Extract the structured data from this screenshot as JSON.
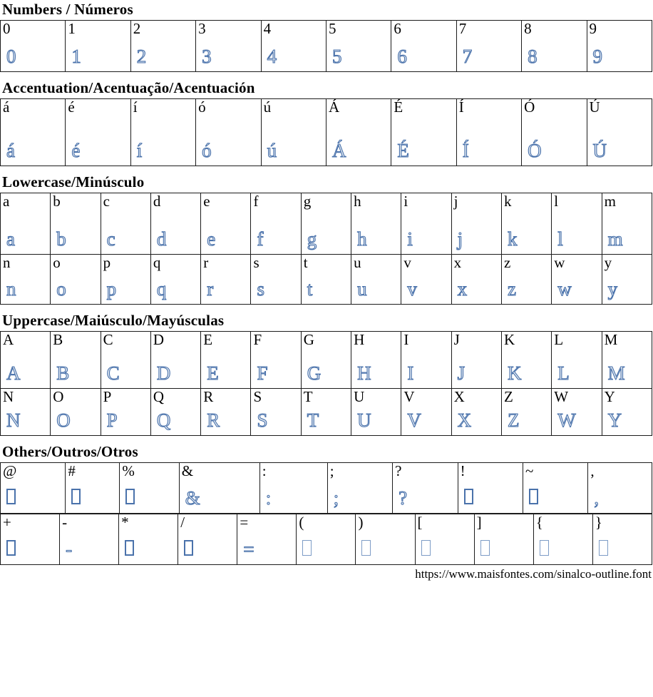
{
  "page": {
    "url": "https://www.maisfontes.com/sinalco-outline.font",
    "glyph_color": "#4a72ab",
    "glyph_color_light": "#7d9cc6",
    "border_color": "#1c1c1c"
  },
  "glyphs": {
    "missing": [
      "@",
      "#",
      "%",
      "!",
      "~",
      "+",
      "*",
      "/",
      "(",
      ")",
      "[",
      "]",
      "{",
      "}"
    ],
    "light": [
      "(",
      ")",
      "[",
      "]",
      "{",
      "}"
    ]
  },
  "sections": [
    {
      "id": "numbers",
      "title": "Numbers / Números",
      "tables": [
        {
          "rows": [
            [
              "0",
              "1",
              "2",
              "3",
              "4",
              "5",
              "6",
              "7",
              "8",
              "9"
            ]
          ]
        }
      ]
    },
    {
      "id": "accentuation",
      "title": "Accentuation/Acentuação/Acentuación",
      "tables": [
        {
          "rows": [
            [
              "á",
              "é",
              "í",
              "ó",
              "ú",
              "Á",
              "É",
              "Í",
              "Ó",
              "Ú"
            ]
          ]
        }
      ]
    },
    {
      "id": "lowercase",
      "title": "Lowercase/Minúsculo",
      "tables": [
        {
          "rows": [
            [
              "a",
              "b",
              "c",
              "d",
              "e",
              "f",
              "g",
              "h",
              "i",
              "j",
              "k",
              "l",
              "m"
            ],
            [
              "n",
              "o",
              "p",
              "q",
              "r",
              "s",
              "t",
              "u",
              "v",
              "x",
              "z",
              "w",
              "y"
            ]
          ]
        }
      ]
    },
    {
      "id": "uppercase",
      "title": "Uppercase/Maiúsculo/Mayúsculas",
      "tables": [
        {
          "rows": [
            [
              "A",
              "B",
              "C",
              "D",
              "E",
              "F",
              "G",
              "H",
              "I",
              "J",
              "K",
              "L",
              "M"
            ],
            [
              "N",
              "O",
              "P",
              "Q",
              "R",
              "S",
              "T",
              "U",
              "V",
              "X",
              "Z",
              "W",
              "Y"
            ]
          ]
        }
      ]
    },
    {
      "id": "others",
      "title": "Others/Outros/Otros",
      "tables": [
        {
          "col_widths": [
            "10%",
            "8.3%",
            "9.1%",
            "12.4%",
            "10.4%",
            "10%",
            "10%",
            "10%",
            "10%",
            "9.8%"
          ],
          "rows": [
            [
              "@",
              "#",
              "%",
              "&",
              ":",
              ";",
              "?",
              "!",
              "~",
              ","
            ]
          ]
        },
        {
          "rows": [
            [
              "+",
              "-",
              "*",
              "/",
              "=",
              "(",
              ")",
              "[",
              "]",
              "{",
              "}"
            ]
          ]
        }
      ]
    }
  ]
}
